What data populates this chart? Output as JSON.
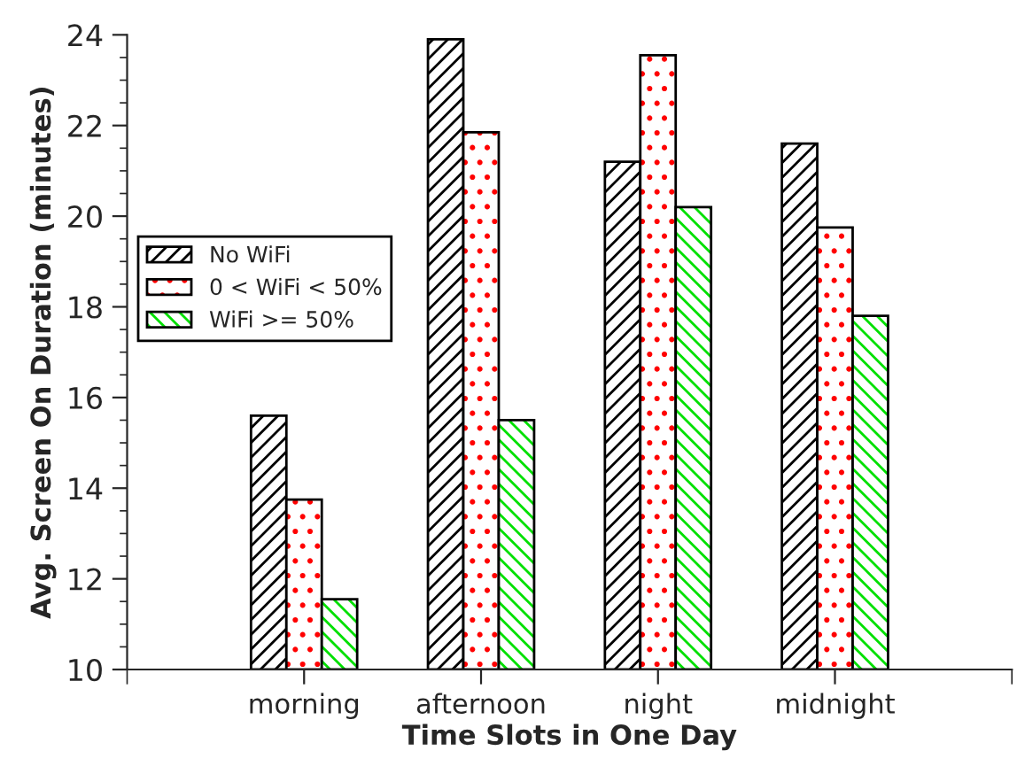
{
  "chart_data": {
    "type": "bar",
    "xlabel": "Time Slots in One Day",
    "ylabel": "Avg. Screen On Duration (minutes)",
    "categories": [
      "morning",
      "afternoon",
      "night",
      "midnight"
    ],
    "series": [
      {
        "name": "No WiFi",
        "color": "#000000",
        "values": [
          15.6,
          23.9,
          21.2,
          21.6
        ]
      },
      {
        "name": "0 < WiFi < 50%",
        "color": "#ff0000",
        "values": [
          13.75,
          21.85,
          23.55,
          19.75
        ]
      },
      {
        "name": "WiFi >= 50%",
        "color": "#00e000",
        "values": [
          11.55,
          15.5,
          20.2,
          17.8
        ]
      }
    ],
    "ylim": [
      10,
      24
    ],
    "yticks": [
      10,
      12,
      14,
      16,
      18,
      20,
      22,
      24
    ],
    "grid": false,
    "legend": "left"
  }
}
